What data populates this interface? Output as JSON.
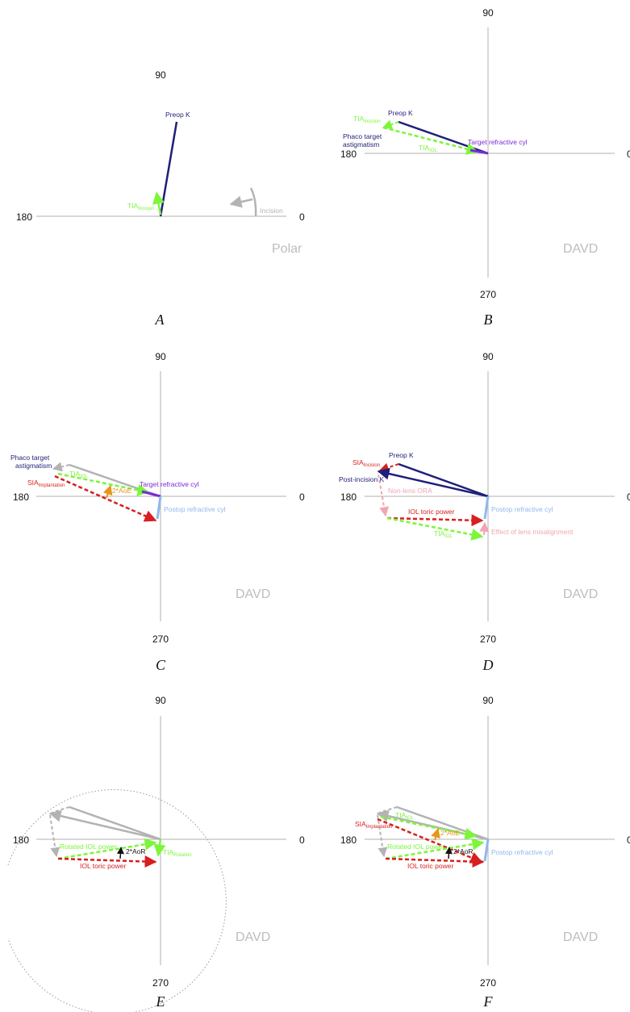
{
  "colors": {
    "axis": "#b0b0b0",
    "navy": "#1f1f7a",
    "tia": "#7cf63a",
    "red": "#d81f1f",
    "purple": "#7b2bd6",
    "lightblue": "#8fb8ee",
    "gray": "#b3b3b3",
    "orange": "#e8951a",
    "pink": "#f2a5b2",
    "black": "#111111",
    "watermark": "#bdbdbd"
  },
  "panels": {
    "A": {
      "letter": "A",
      "watermark": "Polar",
      "top": "90",
      "left": "180",
      "right": "0",
      "bottom": "",
      "labels": {
        "preop_k": "Preop K",
        "tia_main": "TIA",
        "tia_sub": "Incision",
        "incision": "Incision"
      }
    },
    "B": {
      "letter": "B",
      "watermark": "DAVD",
      "top": "90",
      "left": "180",
      "right": "0",
      "bottom": "270",
      "labels": {
        "preop_k": "Preop K",
        "tia1_main": "TIA",
        "tia1_sub": "Incision",
        "phaco1": "Phaco target",
        "phaco2": "astigmatism",
        "tia2_main": "TIA",
        "tia2_sub": "IOL",
        "target_cyl": "Target refractive cyl"
      }
    },
    "C": {
      "letter": "C",
      "watermark": "DAVD",
      "top": "90",
      "left": "180",
      "right": "0",
      "bottom": "270",
      "labels": {
        "phaco1": "Phaco target",
        "phaco2": "astigmatism",
        "tia_main": "TIA",
        "tia_sub": "IOL",
        "sia_main": "SIA",
        "sia_sub": "Implantation",
        "aoe": "2*AoE",
        "target_cyl": "Target refractive cyl",
        "postop_cyl": "Postop refractive cyl"
      }
    },
    "D": {
      "letter": "D",
      "watermark": "DAVD",
      "top": "90",
      "left": "180",
      "right": "0",
      "bottom": "270",
      "labels": {
        "preop_k": "Preop K",
        "sia_main": "SIA",
        "sia_sub": "Incision",
        "post_incision_k": "Post-incision K",
        "non_lens_ora": "Non-lens ORA",
        "iol_toric": "IOL toric power",
        "postop_cyl": "Postop refractive cyl",
        "tia_main": "TIA",
        "tia_sub": "IOL",
        "misalignment": "Effect of lens misalignment"
      }
    },
    "E": {
      "letter": "E",
      "watermark": "DAVD",
      "top": "90",
      "left": "180",
      "right": "0",
      "bottom": "270",
      "labels": {
        "rotated_iol": "Rotated IOL power",
        "aor": "2*AoR",
        "iol_toric": "IOL toric power",
        "tia_main": "TIA",
        "tia_sub": "Rotation"
      }
    },
    "F": {
      "letter": "F",
      "watermark": "DAVD",
      "top": "90",
      "left": "180",
      "right": "0",
      "bottom": "270",
      "labels": {
        "tia_main": "TIA",
        "tia_sub": "IOL",
        "sia_main": "SIA",
        "sia_sub": "Implantation",
        "aoe": "2*AoE",
        "rotated_iol": "Rotated IOL power",
        "aor": "2*AoR",
        "iol_toric": "IOL toric power",
        "postop_cyl": "Postop refractive cyl"
      }
    }
  }
}
